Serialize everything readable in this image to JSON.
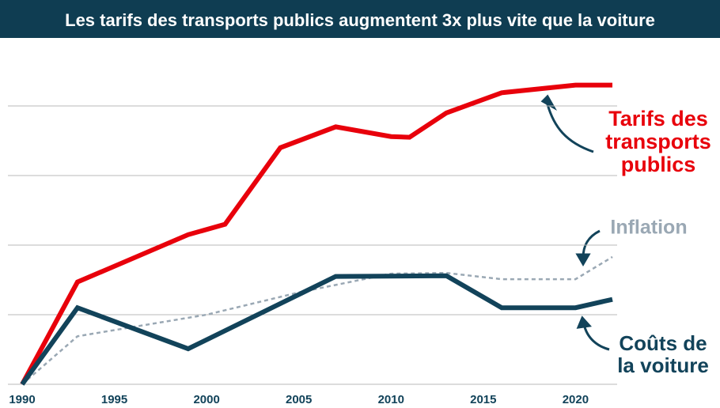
{
  "chart_data": {
    "type": "line",
    "title": "Les tarifs des transports publics augmentent 3x plus vite que la voiture",
    "xlim": [
      1990,
      2022
    ],
    "xticks": [
      1990,
      1995,
      2000,
      2005,
      2010,
      2015,
      2020
    ],
    "ylim": [
      0,
      4.5
    ],
    "yticks": [
      0,
      1,
      2,
      3,
      4
    ],
    "grid": true,
    "series": [
      {
        "name": [
          "Tarifs des",
          "transports",
          "publics"
        ],
        "color": "#e8000b",
        "dash": false,
        "x": [
          1990,
          1993,
          1999,
          2001,
          2004,
          2007,
          2010,
          2011,
          2013,
          2016,
          2020,
          2022
        ],
        "values": [
          0,
          1.47,
          2.15,
          2.3,
          3.4,
          3.7,
          3.56,
          3.55,
          3.9,
          4.19,
          4.3,
          4.3
        ]
      },
      {
        "name": [
          "Inflation"
        ],
        "color": "#9aa8b4",
        "dash": true,
        "x": [
          1990,
          1993,
          2000,
          2005,
          2010,
          2013,
          2016,
          2020,
          2022
        ],
        "values": [
          0,
          0.69,
          1.0,
          1.32,
          1.59,
          1.6,
          1.51,
          1.51,
          1.83
        ]
      },
      {
        "name": [
          "Coûts de",
          "la voiture"
        ],
        "color": "#12435a",
        "dash": false,
        "x": [
          1990,
          1993,
          1999,
          2007,
          2013,
          2016,
          2020,
          2022
        ],
        "values": [
          0,
          1.1,
          0.51,
          1.55,
          1.56,
          1.1,
          1.1,
          1.22
        ]
      }
    ]
  }
}
